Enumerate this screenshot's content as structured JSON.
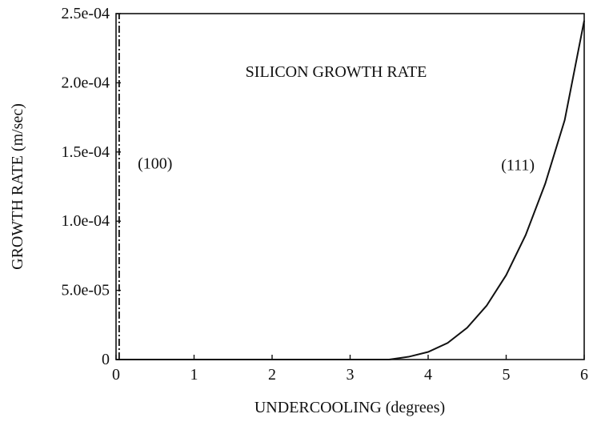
{
  "chart_data": {
    "type": "line",
    "title": "SILICON GROWTH RATE",
    "xlabel": "UNDERCOOLING (degrees)",
    "ylabel": "GROWTH RATE (m/sec)",
    "xlim": [
      0,
      6
    ],
    "ylim": [
      0,
      0.00025
    ],
    "x_ticks": [
      0,
      1,
      2,
      3,
      4,
      5,
      6
    ],
    "x_tick_labels": [
      "0",
      "1",
      "2",
      "3",
      "4",
      "5",
      "6"
    ],
    "y_ticks": [
      0,
      5e-05,
      0.0001,
      0.00015,
      0.0002,
      0.00025
    ],
    "y_tick_labels": [
      "0",
      "5.0e-05",
      "1.0e-04",
      "1.5e-04",
      "2.0e-04",
      "2.5e-04"
    ],
    "grid": false,
    "series": [
      {
        "name": "(111)",
        "style": "solid",
        "x": [
          0,
          1,
          2,
          3,
          3.5,
          3.75,
          4,
          4.25,
          4.5,
          4.75,
          5,
          5.25,
          5.5,
          5.75,
          6
        ],
        "y": [
          0,
          0,
          0,
          0,
          0,
          2e-06,
          5.5e-06,
          1.2e-05,
          2.3e-05,
          3.9e-05,
          6.1e-05,
          9e-05,
          0.000127,
          0.000173,
          0.000245
        ]
      },
      {
        "name": "(100)",
        "style": "dash-dot",
        "x": [
          0.04,
          0.04
        ],
        "y": [
          0,
          0.00025
        ]
      }
    ],
    "annotations": [
      {
        "text": "(100)",
        "x": 0.5,
        "y": 0.000138
      },
      {
        "text": "(111)",
        "x": 5.15,
        "y": 0.000137
      }
    ]
  }
}
